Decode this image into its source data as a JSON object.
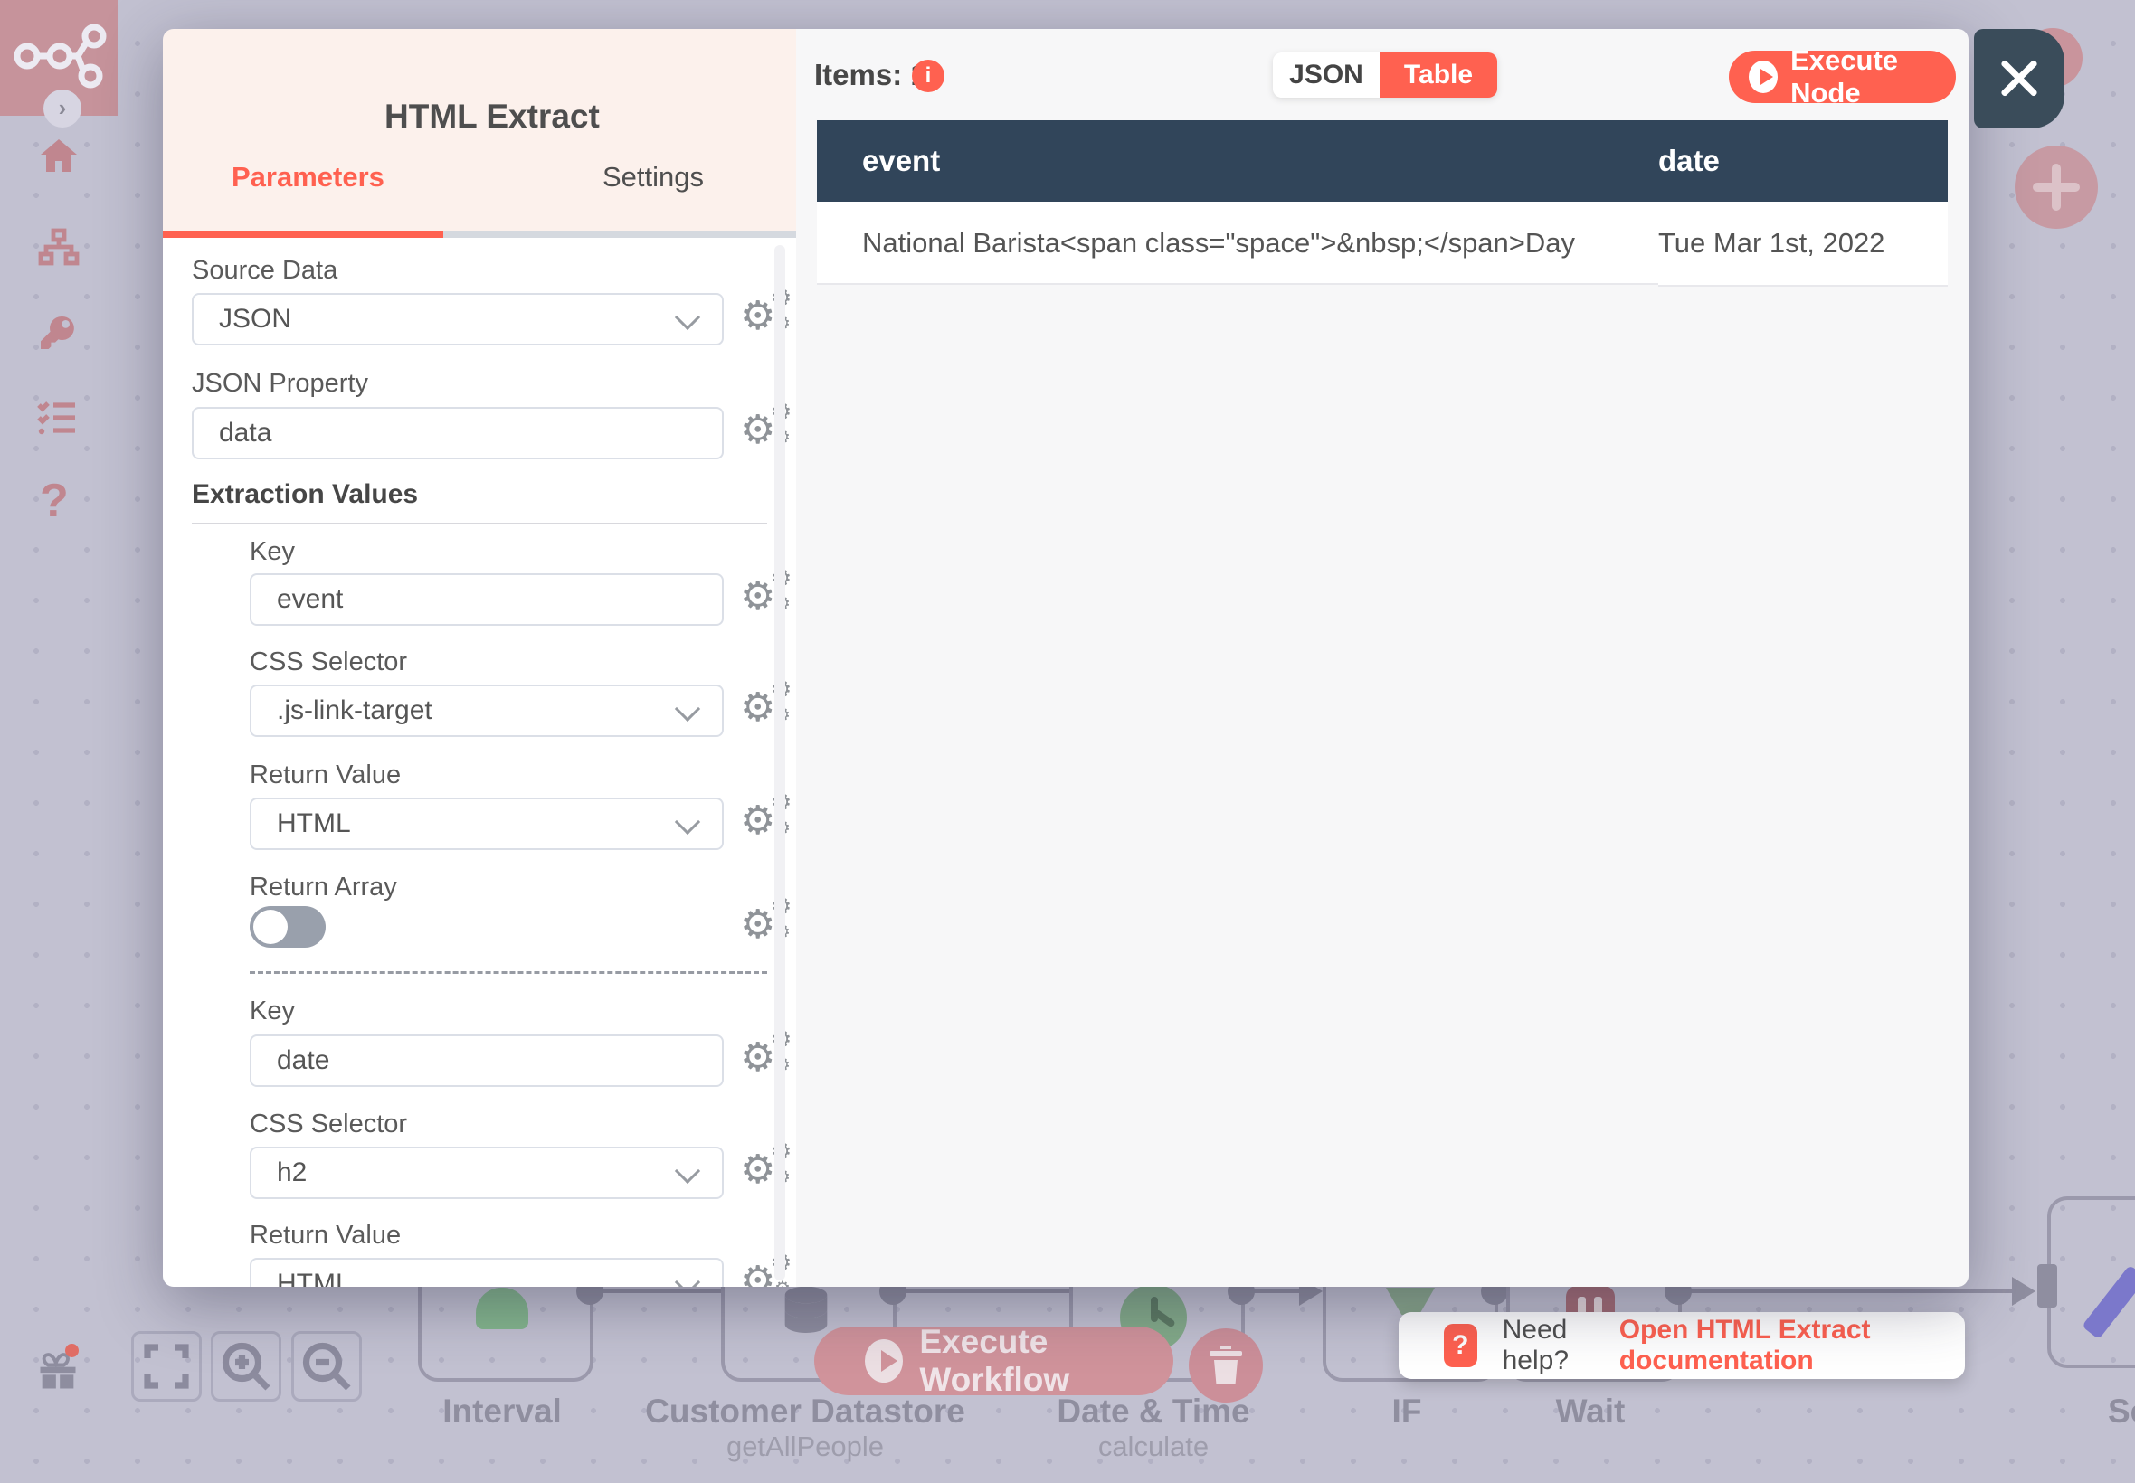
{
  "dialog": {
    "title": "HTML Extract",
    "tabs": {
      "parameters": "Parameters",
      "settings": "Settings"
    },
    "form": {
      "source_data_label": "Source Data",
      "source_data_value": "JSON",
      "json_property_label": "JSON Property",
      "json_property_value": "data",
      "section_heading": "Extraction Values",
      "key1_label": "Key",
      "key1_value": "event",
      "css1_label": "CSS Selector",
      "css1_value": ".js-link-target",
      "return1_label": "Return Value",
      "return1_value": "HTML",
      "return_array_label": "Return Array",
      "key2_label": "Key",
      "key2_value": "date",
      "css2_label": "CSS Selector",
      "css2_value": "h2",
      "return2_label": "Return Value",
      "return2_value": "HTML"
    },
    "output": {
      "items_label": "Items: 1",
      "view_json": "JSON",
      "view_table": "Table",
      "execute_node_label": "Execute Node",
      "table": {
        "headers": [
          "event",
          "date"
        ],
        "row": [
          "National Barista<span class=\"space\">&nbsp;</span>Day",
          "Tue Mar 1st, 2022"
        ]
      }
    }
  },
  "canvas": {
    "nodes": [
      {
        "label": "Interval",
        "sub": ""
      },
      {
        "label": "Customer Datastore",
        "sub": "getAllPeople"
      },
      {
        "label": "Date & Time",
        "sub": "calculate"
      },
      {
        "label": "IF",
        "sub": ""
      },
      {
        "label": "Wait",
        "sub": ""
      },
      {
        "label": "Se",
        "sub": ""
      }
    ],
    "execute_workflow_label": "Execute Workflow",
    "help_prefix": "Need help?",
    "help_link": "Open HTML Extract documentation"
  },
  "colors": {
    "accent": "#ff6150",
    "slate": "#31455a",
    "canvas": "#c2c1d1"
  }
}
